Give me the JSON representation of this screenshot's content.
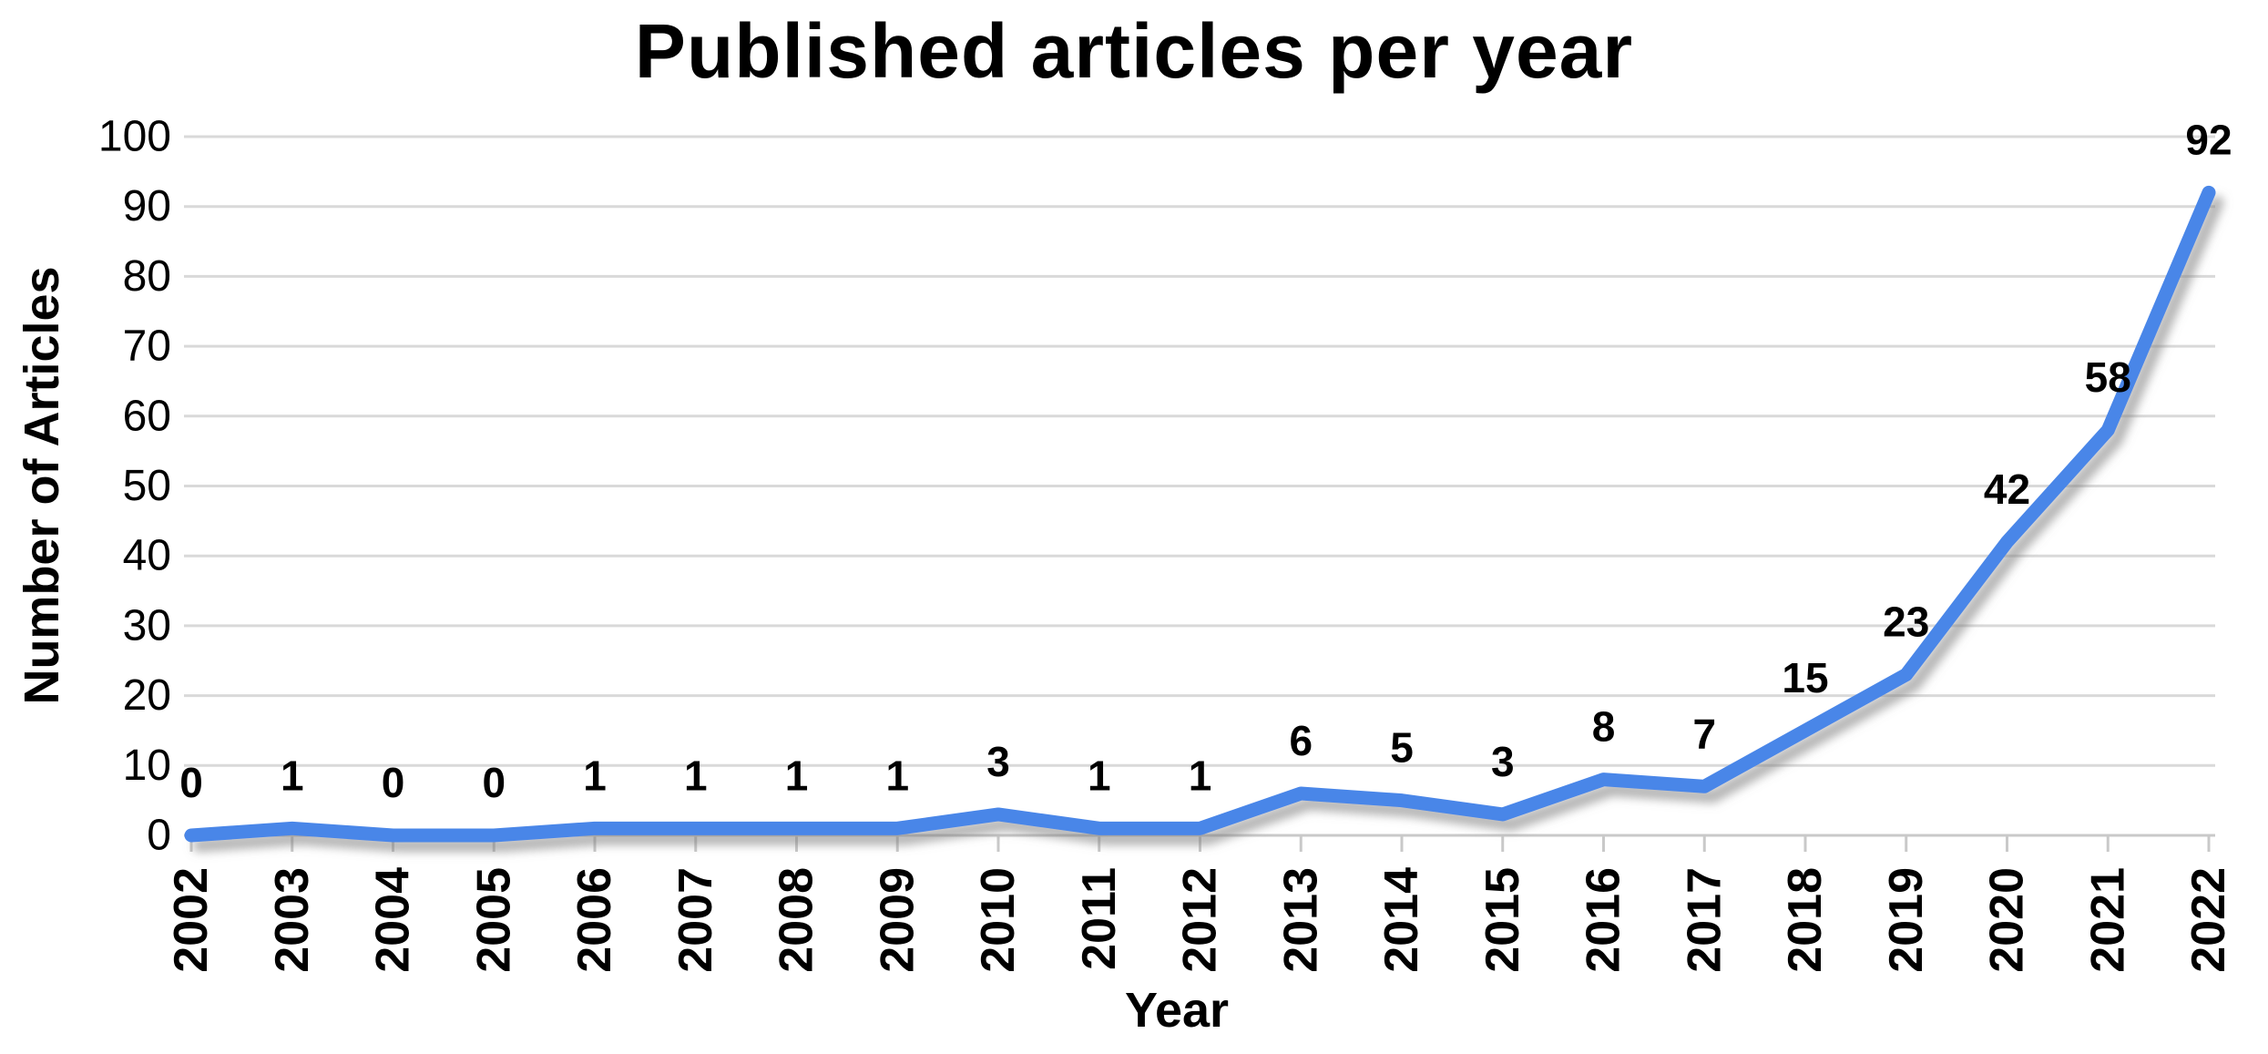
{
  "chart_data": {
    "type": "line",
    "title": "Published articles per year",
    "xlabel": "Year",
    "ylabel": "Number of Articles",
    "categories": [
      "2002",
      "2003",
      "2004",
      "2005",
      "2006",
      "2007",
      "2008",
      "2009",
      "2010",
      "2011",
      "2012",
      "2013",
      "2014",
      "2015",
      "2016",
      "2017",
      "2018",
      "2019",
      "2020",
      "2021",
      "2022"
    ],
    "values": [
      0,
      1,
      0,
      0,
      1,
      1,
      1,
      1,
      3,
      1,
      1,
      6,
      5,
      3,
      8,
      7,
      15,
      23,
      42,
      58,
      92
    ],
    "ylim": [
      0,
      100
    ],
    "ytick_interval": 10,
    "grid": true,
    "legend": false,
    "data_labels_shown": true,
    "line_shadow": true,
    "colors": {
      "line": "#4a86e8",
      "gridline": "#d9d9d9",
      "axis": "#c9c9c9",
      "text": "#000000",
      "background": "#ffffff"
    }
  }
}
